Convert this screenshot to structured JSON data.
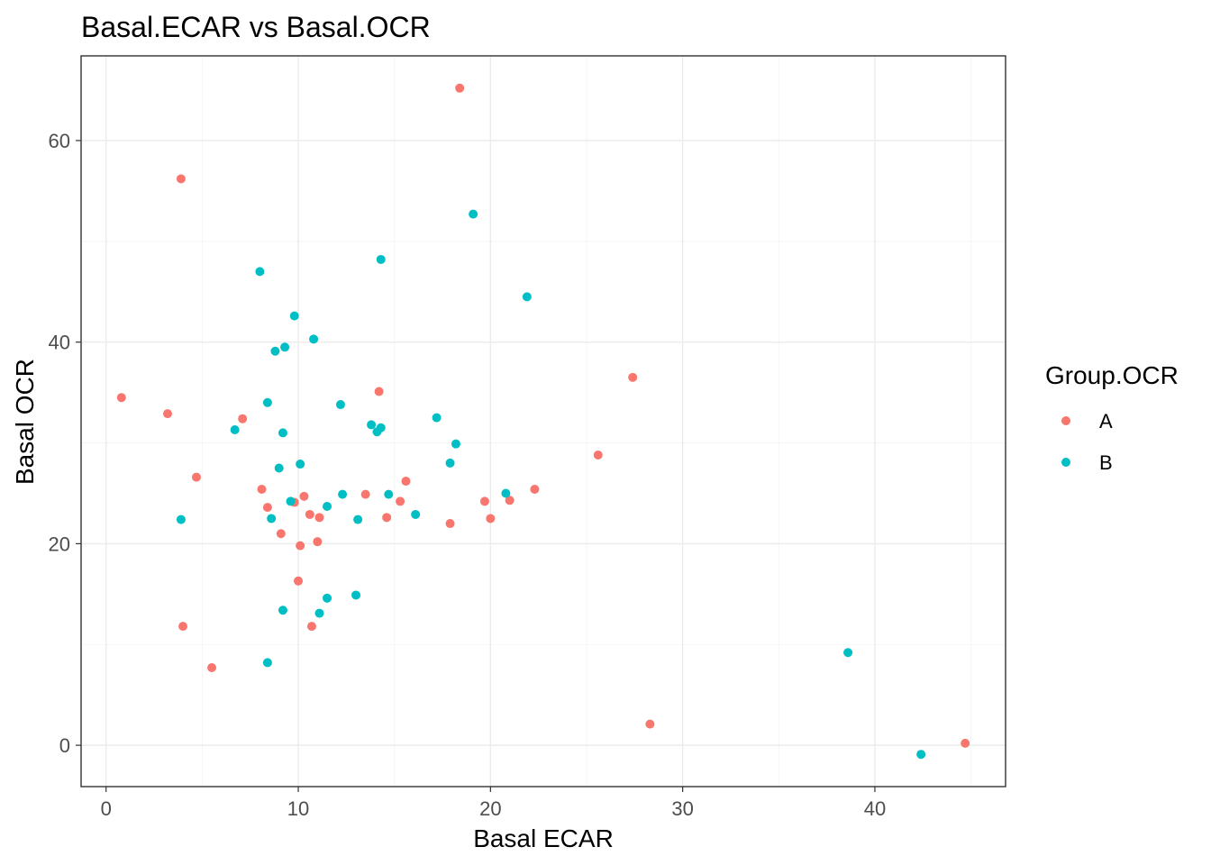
{
  "chart_data": {
    "type": "scatter",
    "title": "Basal.ECAR vs Basal.OCR",
    "xlabel": "Basal ECAR",
    "ylabel": "Basal OCR",
    "xlim": [
      -1.3,
      46.8
    ],
    "ylim": [
      -4.1,
      68.4
    ],
    "x_ticks": [
      0,
      10,
      20,
      30,
      40
    ],
    "y_ticks": [
      0,
      20,
      40,
      60
    ],
    "grid": true,
    "legend": {
      "title": "Group.OCR",
      "position": "right"
    },
    "series": [
      {
        "name": "A",
        "color": "#F8766D",
        "points": [
          [
            18.4,
            65.2
          ],
          [
            3.9,
            56.2
          ],
          [
            0.8,
            34.5
          ],
          [
            3.2,
            32.9
          ],
          [
            7.1,
            32.4
          ],
          [
            4.7,
            26.6
          ],
          [
            8.1,
            25.4
          ],
          [
            8.4,
            23.6
          ],
          [
            9.1,
            21.0
          ],
          [
            9.8,
            24.1
          ],
          [
            10.3,
            24.7
          ],
          [
            10.6,
            22.9
          ],
          [
            11.1,
            22.6
          ],
          [
            11.0,
            20.2
          ],
          [
            10.1,
            19.8
          ],
          [
            10.0,
            16.3
          ],
          [
            10.7,
            11.8
          ],
          [
            4.0,
            11.8
          ],
          [
            5.5,
            7.7
          ],
          [
            13.5,
            24.9
          ],
          [
            14.2,
            35.1
          ],
          [
            14.6,
            22.6
          ],
          [
            15.3,
            24.2
          ],
          [
            15.6,
            26.2
          ],
          [
            17.9,
            22.0
          ],
          [
            19.7,
            24.2
          ],
          [
            20.0,
            22.5
          ],
          [
            21.0,
            24.3
          ],
          [
            22.3,
            25.4
          ],
          [
            25.6,
            28.8
          ],
          [
            27.4,
            36.5
          ],
          [
            28.3,
            2.1
          ],
          [
            44.7,
            0.2
          ]
        ]
      },
      {
        "name": "B",
        "color": "#00BFC4",
        "points": [
          [
            19.1,
            52.7
          ],
          [
            14.3,
            48.2
          ],
          [
            8.0,
            47.0
          ],
          [
            21.9,
            44.5
          ],
          [
            9.8,
            42.6
          ],
          [
            10.8,
            40.3
          ],
          [
            9.3,
            39.5
          ],
          [
            8.8,
            39.1
          ],
          [
            12.2,
            33.8
          ],
          [
            8.4,
            34.0
          ],
          [
            6.7,
            31.3
          ],
          [
            9.2,
            31.0
          ],
          [
            13.8,
            31.8
          ],
          [
            14.3,
            31.5
          ],
          [
            14.1,
            31.1
          ],
          [
            17.2,
            32.5
          ],
          [
            18.2,
            29.9
          ],
          [
            17.9,
            28.0
          ],
          [
            10.1,
            27.9
          ],
          [
            9.0,
            27.5
          ],
          [
            9.6,
            24.2
          ],
          [
            8.6,
            22.5
          ],
          [
            12.3,
            24.9
          ],
          [
            11.5,
            23.7
          ],
          [
            13.1,
            22.4
          ],
          [
            14.7,
            24.9
          ],
          [
            16.1,
            22.9
          ],
          [
            20.8,
            25.0
          ],
          [
            3.9,
            22.4
          ],
          [
            11.5,
            14.6
          ],
          [
            13.0,
            14.9
          ],
          [
            9.2,
            13.4
          ],
          [
            11.1,
            13.1
          ],
          [
            8.4,
            8.2
          ],
          [
            38.6,
            9.2
          ],
          [
            42.4,
            -0.9
          ]
        ]
      }
    ]
  }
}
